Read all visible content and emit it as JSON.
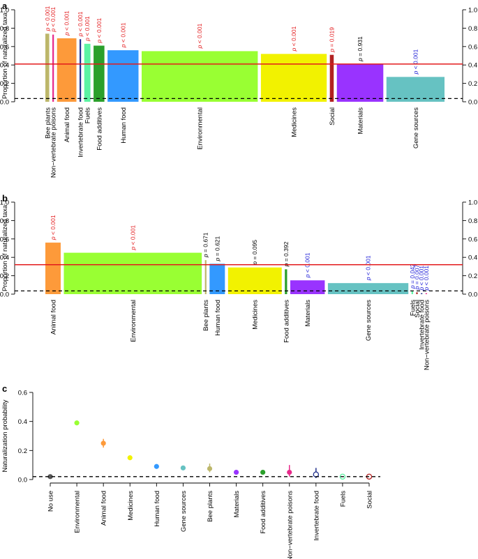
{
  "chart_data": [
    {
      "panel": "a",
      "type": "bar",
      "ylabel": "Proportion of naturalized taxa",
      "ylim": [
        0,
        1
      ],
      "yticks": [
        "0.0",
        "0.2",
        "0.4",
        "0.6",
        "0.8",
        "1.0"
      ],
      "reference_line": 0.41,
      "baseline_dashed": 0.035,
      "series": [
        {
          "name": "Bee plants",
          "value": 0.74,
          "p": "< 0.001",
          "pcolor": "#e31a1c",
          "color": "#bdb76b",
          "width_weight": 0.5
        },
        {
          "name": "Non−vertebrate poisons",
          "value": 0.73,
          "p": "< 0.001",
          "pcolor": "#e31a1c",
          "color": "#e7298a",
          "width_weight": 0.2
        },
        {
          "name": "Animal food",
          "value": 0.69,
          "p": "< 0.001",
          "pcolor": "#e31a1c",
          "color": "#fd9a3a",
          "width_weight": 2.5
        },
        {
          "name": "Invertebrate food",
          "value": 0.68,
          "p": "< 0.001",
          "pcolor": "#e31a1c",
          "color": "#1f2f8c",
          "width_weight": 0.2
        },
        {
          "name": "Fuels",
          "value": 0.63,
          "p": "< 0.001",
          "pcolor": "#e31a1c",
          "color": "#5cf3a3",
          "width_weight": 0.8
        },
        {
          "name": "Food additives",
          "value": 0.61,
          "p": "< 0.001",
          "pcolor": "#e31a1c",
          "color": "#2ca02c",
          "width_weight": 1.4
        },
        {
          "name": "Human food",
          "value": 0.56,
          "p": "< 0.001",
          "pcolor": "#e31a1c",
          "color": "#3399ff",
          "width_weight": 4
        },
        {
          "name": "Environmental",
          "value": 0.55,
          "p": "< 0.001",
          "pcolor": "#e31a1c",
          "color": "#99ff33",
          "width_weight": 15
        },
        {
          "name": "Medicines",
          "value": 0.52,
          "p": "< 0.001",
          "pcolor": "#e31a1c",
          "color": "#f2f200",
          "width_weight": 8.5
        },
        {
          "name": "Social",
          "value": 0.51,
          "p": "= 0.019",
          "pcolor": "#e31a1c",
          "color": "#b22222",
          "width_weight": 0.5
        },
        {
          "name": "Materials",
          "value": 0.41,
          "p": "= 0.931",
          "pcolor": "#000000",
          "color": "#9933ff",
          "width_weight": 6
        },
        {
          "name": "Gene sources",
          "value": 0.27,
          "p": "< 0.001",
          "pcolor": "#1a1ad6",
          "color": "#66c2c2",
          "width_weight": 7.5
        }
      ]
    },
    {
      "panel": "b",
      "type": "bar",
      "ylabel": "Proportion of naturalized taxa",
      "ylim": [
        0,
        1
      ],
      "yticks": [
        "0.0",
        "0.2",
        "0.4",
        "0.6",
        "0.8",
        "1.0"
      ],
      "reference_line": 0.32,
      "baseline_dashed": 0.035,
      "series": [
        {
          "name": "Animal food",
          "value": 0.56,
          "p": "< 0.001",
          "pcolor": "#e31a1c",
          "color": "#fd9a3a",
          "width_weight": 2
        },
        {
          "name": "Environmental",
          "value": 0.45,
          "p": "< 0.001",
          "pcolor": "#e31a1c",
          "color": "#99ff33",
          "width_weight": 18
        },
        {
          "name": "Bee plants",
          "value": 0.37,
          "p": "= 0.671",
          "pcolor": "#000000",
          "color": "#bdb76b",
          "width_weight": 0.2
        },
        {
          "name": "Human food",
          "value": 0.33,
          "p": "= 0.621",
          "pcolor": "#000000",
          "color": "#3399ff",
          "width_weight": 2
        },
        {
          "name": "Medicines",
          "value": 0.29,
          "p": "= 0.095",
          "pcolor": "#000000",
          "color": "#f2f200",
          "width_weight": 7
        },
        {
          "name": "Food additives",
          "value": 0.27,
          "p": "= 0.392",
          "pcolor": "#000000",
          "color": "#2ca02c",
          "width_weight": 0.3
        },
        {
          "name": "Materials",
          "value": 0.15,
          "p": "< 0.001",
          "pcolor": "#1a1ad6",
          "color": "#9933ff",
          "width_weight": 4.5
        },
        {
          "name": "Gene sources",
          "value": 0.12,
          "p": "< 0.001",
          "pcolor": "#1a1ad6",
          "color": "#66c2c2",
          "width_weight": 10.5
        },
        {
          "name": "Fuels",
          "value": 0.03,
          "p": "= 0.042",
          "pcolor": "#1a1ad6",
          "color": "#5cf3a3",
          "width_weight": 0.2
        },
        {
          "name": "Social",
          "value": 0.02,
          "p": "= 0.007",
          "pcolor": "#1a1ad6",
          "color": "#b22222",
          "width_weight": 0.2
        },
        {
          "name": "Invertebrate food",
          "value": 0.01,
          "p": "< 0.001",
          "pcolor": "#1a1ad6",
          "color": "#1f2f8c",
          "width_weight": 0.2
        },
        {
          "name": "Non−vertebrate poisons",
          "value": 0.01,
          "p": "< 0.001",
          "pcolor": "#1a1ad6",
          "color": "#e7298a",
          "width_weight": 0.2
        }
      ]
    },
    {
      "panel": "c",
      "type": "scatter",
      "ylabel": "Naturalization probability",
      "ylim": [
        0,
        0.6
      ],
      "yticks": [
        "0.0",
        "0.2",
        "0.4",
        "0.6"
      ],
      "baseline_dashed": 0.02,
      "points": [
        {
          "name": "No use",
          "value": 0.02,
          "lo": 0.02,
          "hi": 0.02,
          "color": "#555555",
          "hollow": false
        },
        {
          "name": "Environmental",
          "value": 0.39,
          "lo": 0.38,
          "hi": 0.4,
          "color": "#99ff33",
          "hollow": false
        },
        {
          "name": "Animal food",
          "value": 0.25,
          "lo": 0.22,
          "hi": 0.28,
          "color": "#fd9a3a",
          "hollow": false
        },
        {
          "name": "Medicines",
          "value": 0.15,
          "lo": 0.14,
          "hi": 0.16,
          "color": "#f2f200",
          "hollow": false
        },
        {
          "name": "Human food",
          "value": 0.09,
          "lo": 0.08,
          "hi": 0.1,
          "color": "#3399ff",
          "hollow": false
        },
        {
          "name": "Gene sources",
          "value": 0.08,
          "lo": 0.07,
          "hi": 0.09,
          "color": "#66c2c2",
          "hollow": false
        },
        {
          "name": "Bee plants",
          "value": 0.075,
          "lo": 0.05,
          "hi": 0.11,
          "color": "#bdb76b",
          "hollow": false
        },
        {
          "name": "Materials",
          "value": 0.05,
          "lo": 0.04,
          "hi": 0.06,
          "color": "#9933ff",
          "hollow": false
        },
        {
          "name": "Food additives",
          "value": 0.05,
          "lo": 0.04,
          "hi": 0.06,
          "color": "#2ca02c",
          "hollow": false
        },
        {
          "name": "Non−vertebrate poisons",
          "value": 0.05,
          "lo": 0.02,
          "hi": 0.1,
          "color": "#e7298a",
          "hollow": false
        },
        {
          "name": "Invertebrate food",
          "value": 0.035,
          "lo": 0.01,
          "hi": 0.08,
          "color": "#1f2f8c",
          "hollow": true
        },
        {
          "name": "Fuels",
          "value": 0.02,
          "lo": 0.01,
          "hi": 0.03,
          "color": "#5cf3a3",
          "hollow": true
        },
        {
          "name": "Social",
          "value": 0.02,
          "lo": 0.01,
          "hi": 0.03,
          "color": "#b22222",
          "hollow": true
        }
      ]
    }
  ]
}
